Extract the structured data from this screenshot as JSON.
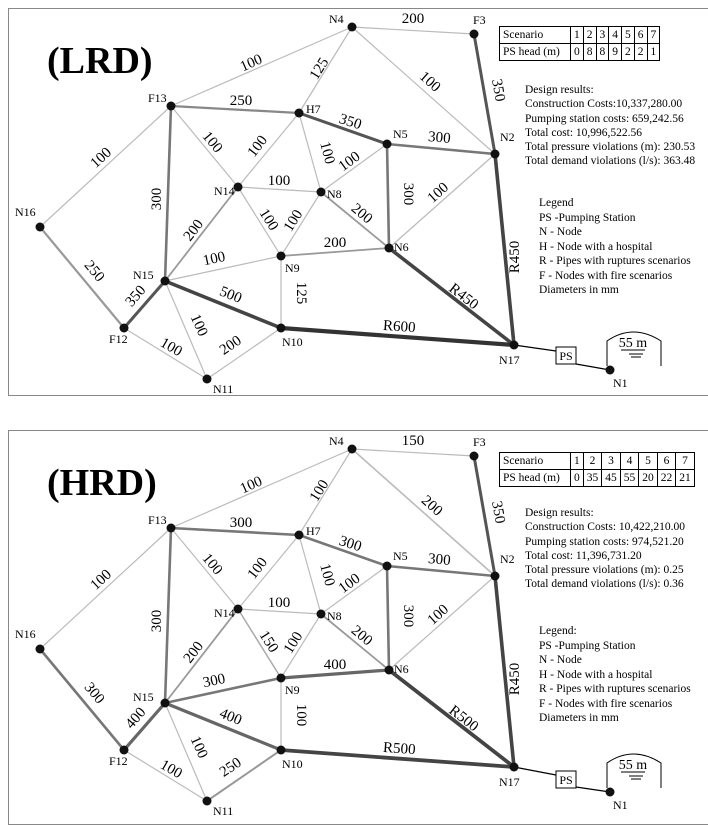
{
  "panels": [
    {
      "title": "(LRD)",
      "scenario_header": "Scenario",
      "scenario_numbers": [
        "1",
        "2",
        "3",
        "4",
        "5",
        "6",
        "7"
      ],
      "ps_head_label": "PS head (m)",
      "ps_head_values": [
        "0",
        "8",
        "8",
        "9",
        "2",
        "2",
        "1"
      ],
      "results": {
        "heading": "Design results:",
        "construction": "Construction Costs:10,337,280.00",
        "pumping": "Pumping station costs: 659,242.56",
        "total": "Total cost: 10,996,522.56",
        "pressure": "Total pressure violations (m): 230.53",
        "demand": "Total demand violations (l/s): 363.48"
      },
      "legend": {
        "title": "Legend",
        "ps": "PS -Pumping Station",
        "n": "N - Node",
        "h": "H - Node with a hospital",
        "r": "R - Pipes with ruptures scenarios",
        "f": "F - Nodes with fire scenarios",
        "d": "Diameters in mm"
      },
      "pipe_labels": {
        "n4_f3": "200",
        "n4_f13": "100",
        "n4_h7": "125",
        "n4_n2": "100",
        "f3_n2": "350",
        "f13_h7": "250",
        "h7_n5": "350",
        "n5_n2": "300",
        "f13_n14": "100",
        "h7_n14": "100",
        "h7_n8": "100",
        "n5_n8": "100",
        "n5_n6": "300",
        "n2_n6": "100",
        "n2_n17": "R450",
        "n14_n8": "100",
        "n14_n15": "200",
        "n14_n9": "100",
        "n8_n9": "100",
        "n8_n6": "200",
        "n9_n6": "200",
        "n6_n17": "R450",
        "f13_n15": "300",
        "f13_n16": "100",
        "n16_f12": "250",
        "n15_f12": "350",
        "n15_n9": "100",
        "n15_n10": "500",
        "n9_n10": "125",
        "n10_n17": "R600",
        "n15_n11": "100",
        "f12_n11": "100",
        "n11_n10": "200"
      },
      "node_labels": {
        "n4": "N4",
        "f3": "F3",
        "f13": "F13",
        "h7": "H7",
        "n5": "N5",
        "n2": "N2",
        "n14": "N14",
        "n8": "N8",
        "n16": "N16",
        "n6": "N6",
        "n9": "N9",
        "n15": "N15",
        "f12": "F12",
        "n10": "N10",
        "n11": "N11",
        "n17": "N17",
        "n1": "N1"
      },
      "ps_label": "PS",
      "tank_label": "55 m"
    },
    {
      "title": "(HRD)",
      "scenario_header": "Scenario",
      "scenario_numbers": [
        "1",
        "2",
        "3",
        "4",
        "5",
        "6",
        "7"
      ],
      "ps_head_label": "PS head (m)",
      "ps_head_values": [
        "0",
        "35",
        "45",
        "55",
        "20",
        "22",
        "21"
      ],
      "results": {
        "heading": "Design results:",
        "construction": "Construction Costs: 10,422,210.00",
        "pumping": "Pumping station costs: 974,521.20",
        "total": "Total cost: 11,396,731.20",
        "pressure": "Total pressure violations (m): 0.25",
        "demand": "Total demand violations (l/s): 0.36"
      },
      "legend": {
        "title": "Legend:",
        "ps": "PS -Pumping Station",
        "n": "N - Node",
        "h": "H - Node with a hospital",
        "r": "R - Pipes with ruptures scenarios",
        "f": "F - Nodes with fire scenarios",
        "d": "Diameters in mm"
      },
      "pipe_labels": {
        "n4_f3": "150",
        "n4_f13": "100",
        "n4_h7": "100",
        "n4_n2": "200",
        "f3_n2": "350",
        "f13_h7": "300",
        "h7_n5": "300",
        "n5_n2": "300",
        "f13_n14": "100",
        "h7_n14": "100",
        "h7_n8": "100",
        "n5_n8": "100",
        "n5_n6": "300",
        "n2_n6": "100",
        "n2_n17": "R450",
        "n14_n8": "100",
        "n14_n15": "200",
        "n14_n9": "150",
        "n8_n9": "100",
        "n8_n6": "200",
        "n9_n6": "400",
        "n6_n17": "R500",
        "f13_n15": "300",
        "f13_n16": "100",
        "n16_f12": "300",
        "n15_f12": "400",
        "n15_n9": "300",
        "n15_n10": "400",
        "n9_n10": "100",
        "n10_n17": "R500",
        "n15_n11": "100",
        "f12_n11": "100",
        "n11_n10": "250"
      },
      "node_labels": {
        "n4": "N4",
        "f3": "F3",
        "f13": "F13",
        "h7": "H7",
        "n5": "N5",
        "n2": "N2",
        "n14": "N14",
        "n8": "N8",
        "n16": "N16",
        "n6": "N6",
        "n9": "N9",
        "n15": "N15",
        "f12": "F12",
        "n10": "N10",
        "n11": "N11",
        "n17": "N17",
        "n1": "N1"
      },
      "ps_label": "PS",
      "tank_label": "55 m"
    }
  ]
}
